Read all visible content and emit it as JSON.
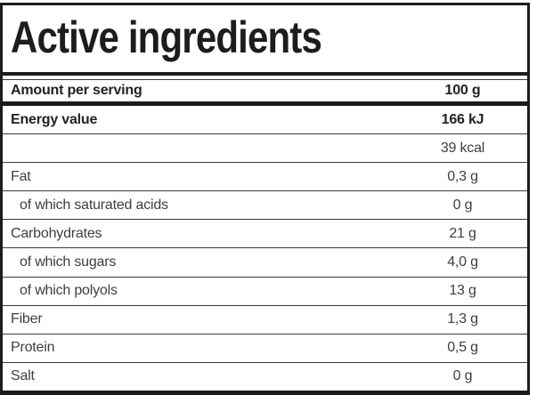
{
  "title": "Active ingredients",
  "table": {
    "header": {
      "label": "Amount per serving",
      "value": "100 g"
    },
    "rows": [
      {
        "label": "Energy value",
        "value": "166 kJ"
      },
      {
        "label": "",
        "value": "39 kcal"
      },
      {
        "label": "Fat",
        "value": "0,3 g"
      },
      {
        "label": "of which saturated acids",
        "value": "0 g"
      },
      {
        "label": "Carbohydrates",
        "value": "21 g"
      },
      {
        "label": "of which sugars",
        "value": "4,0 g"
      },
      {
        "label": "of which polyols",
        "value": "13 g"
      },
      {
        "label": "Fiber",
        "value": "1,3 g"
      },
      {
        "label": "Protein",
        "value": "0,5 g"
      },
      {
        "label": "Salt",
        "value": "0 g"
      }
    ]
  },
  "colors": {
    "border_black": "#1c1c1c",
    "separator_gray": "#3b3b3b",
    "text_bold": "#222222",
    "text_regular": "#3e3e3e",
    "background": "#ffffff"
  }
}
